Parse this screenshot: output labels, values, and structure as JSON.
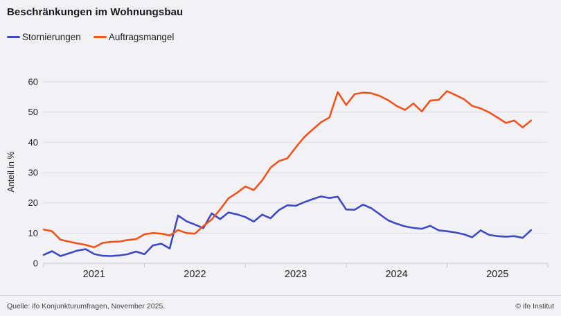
{
  "header": {
    "title": "Beschränkungen im Wohnungsbau"
  },
  "legend": {
    "items": [
      {
        "label": "Stornierungen",
        "color": "#3d49c3"
      },
      {
        "label": "Auftragsmangel",
        "color": "#f0531c"
      }
    ]
  },
  "axes": {
    "y_label": "Anteil in %"
  },
  "footer": {
    "source": "Quelle: ifo Konjunkturumfragen,  November 2025.",
    "credit": "© ifo Institut"
  },
  "colors": {
    "background": "#f1f1f6",
    "gridline": "#dcdde3",
    "axisline": "#c5c6cd",
    "text": "#222228"
  },
  "chart_data": {
    "type": "line",
    "title": "Beschränkungen im Wohnungsbau",
    "ylabel": "Anteil in %",
    "ylim": [
      0,
      60
    ],
    "y_ticks": [
      0,
      10,
      20,
      30,
      40,
      50,
      60
    ],
    "x_tick_labels": [
      "2021",
      "2022",
      "2023",
      "2024",
      "2025"
    ],
    "grid": "horizontal",
    "legend_position": "top-left",
    "x": [
      "2021-01",
      "2021-02",
      "2021-03",
      "2021-04",
      "2021-05",
      "2021-06",
      "2021-07",
      "2021-08",
      "2021-09",
      "2021-10",
      "2021-11",
      "2021-12",
      "2022-01",
      "2022-02",
      "2022-03",
      "2022-04",
      "2022-05",
      "2022-06",
      "2022-07",
      "2022-08",
      "2022-09",
      "2022-10",
      "2022-11",
      "2022-12",
      "2023-01",
      "2023-02",
      "2023-03",
      "2023-04",
      "2023-05",
      "2023-06",
      "2023-07",
      "2023-08",
      "2023-09",
      "2023-10",
      "2023-11",
      "2023-12",
      "2024-01",
      "2024-02",
      "2024-03",
      "2024-04",
      "2024-05",
      "2024-06",
      "2024-07",
      "2024-08",
      "2024-09",
      "2024-10",
      "2024-11",
      "2024-12",
      "2025-01",
      "2025-02",
      "2025-03",
      "2025-04",
      "2025-05",
      "2025-06",
      "2025-07",
      "2025-08",
      "2025-09",
      "2025-10",
      "2025-11"
    ],
    "series": [
      {
        "name": "Stornierungen",
        "color": "#3d49c3",
        "values": [
          2.8,
          4.0,
          2.4,
          3.3,
          4.2,
          4.7,
          3.1,
          2.5,
          2.4,
          2.6,
          3.0,
          3.9,
          3.0,
          5.9,
          6.5,
          4.9,
          15.8,
          13.9,
          12.8,
          11.6,
          16.5,
          14.6,
          16.8,
          16.2,
          15.3,
          13.8,
          16.1,
          14.9,
          17.6,
          19.2,
          19.0,
          20.2,
          21.2,
          22.1,
          21.6,
          22.0,
          17.8,
          17.7,
          19.4,
          18.2,
          16.2,
          14.2,
          13.1,
          12.2,
          11.7,
          11.4,
          12.4,
          10.9,
          10.6,
          10.2,
          9.6,
          8.6,
          10.9,
          9.4,
          9.0,
          8.8,
          9.0,
          8.4,
          11.0
        ]
      },
      {
        "name": "Auftragsmangel",
        "color": "#f0531c",
        "values": [
          11.2,
          10.6,
          7.8,
          7.2,
          6.6,
          6.1,
          5.3,
          6.7,
          7.1,
          7.2,
          7.7,
          8.0,
          9.6,
          10.0,
          9.8,
          9.2,
          11.0,
          10.0,
          9.8,
          12.3,
          14.5,
          17.8,
          21.5,
          23.3,
          25.4,
          24.2,
          27.4,
          31.6,
          33.8,
          34.7,
          38.3,
          41.7,
          44.2,
          46.6,
          48.2,
          56.6,
          52.3,
          55.9,
          56.4,
          56.2,
          55.3,
          53.9,
          52.0,
          50.7,
          52.8,
          50.2,
          53.8,
          54.0,
          56.9,
          55.6,
          54.3,
          52.0,
          51.2,
          49.9,
          48.2,
          46.4,
          47.2,
          44.9,
          47.2
        ]
      }
    ]
  }
}
